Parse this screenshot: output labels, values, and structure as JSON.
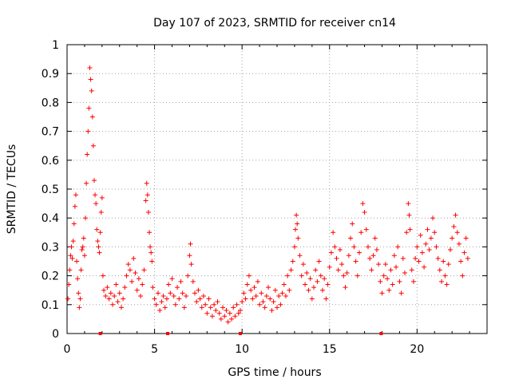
{
  "chart_data": {
    "type": "scatter",
    "title": "Day 107 of 2023, SRMTID for receiver cn14",
    "xlabel": "GPS time / hours",
    "ylabel": "SRMTID / TECUs",
    "xlim": [
      0,
      24
    ],
    "ylim": [
      0,
      1
    ],
    "xticks": [
      0,
      5,
      10,
      15,
      20
    ],
    "yticks": [
      0,
      0.1,
      0.2,
      0.3,
      0.4,
      0.5,
      0.6,
      0.7,
      0.8,
      0.9,
      1
    ],
    "ytick_labels": [
      "0",
      "0.1",
      "0.2",
      "0.3",
      "0.4",
      "0.5",
      "0.6",
      "0.7",
      "0.8",
      "0.9",
      "1"
    ],
    "grid": true,
    "marker": "+",
    "series": [
      {
        "name": "SRMTID",
        "color": "#ff0000",
        "points": [
          [
            0.05,
            0.12
          ],
          [
            0.1,
            0.17
          ],
          [
            0.15,
            0.22
          ],
          [
            0.2,
            0.27
          ],
          [
            0.25,
            0.3
          ],
          [
            0.3,
            0.26
          ],
          [
            0.35,
            0.32
          ],
          [
            0.4,
            0.38
          ],
          [
            0.45,
            0.44
          ],
          [
            0.5,
            0.48
          ],
          [
            0.55,
            0.25
          ],
          [
            0.6,
            0.19
          ],
          [
            0.65,
            0.14
          ],
          [
            0.7,
            0.09
          ],
          [
            0.75,
            0.12
          ],
          [
            0.8,
            0.22
          ],
          [
            0.85,
            0.29
          ],
          [
            0.9,
            0.3
          ],
          [
            0.95,
            0.33
          ],
          [
            1.0,
            0.27
          ],
          [
            1.05,
            0.4
          ],
          [
            1.1,
            0.52
          ],
          [
            1.15,
            0.62
          ],
          [
            1.2,
            0.7
          ],
          [
            1.25,
            0.78
          ],
          [
            1.3,
            0.92
          ],
          [
            1.35,
            0.88
          ],
          [
            1.4,
            0.84
          ],
          [
            1.45,
            0.75
          ],
          [
            1.5,
            0.65
          ],
          [
            1.55,
            0.53
          ],
          [
            1.6,
            0.48
          ],
          [
            1.65,
            0.45
          ],
          [
            1.7,
            0.36
          ],
          [
            1.75,
            0.32
          ],
          [
            1.8,
            0.3
          ],
          [
            1.85,
            0.28
          ],
          [
            1.9,
            0.35
          ],
          [
            1.95,
            0.42
          ],
          [
            2.0,
            0.47
          ],
          [
            2.05,
            0.2
          ],
          [
            2.1,
            0.15
          ],
          [
            2.2,
            0.13
          ],
          [
            2.3,
            0.16
          ],
          [
            2.4,
            0.12
          ],
          [
            2.5,
            0.14
          ],
          [
            2.6,
            0.1
          ],
          [
            2.7,
            0.13
          ],
          [
            2.8,
            0.17
          ],
          [
            2.9,
            0.11
          ],
          [
            3.0,
            0.14
          ],
          [
            3.1,
            0.09
          ],
          [
            3.2,
            0.12
          ],
          [
            3.3,
            0.16
          ],
          [
            3.4,
            0.2
          ],
          [
            3.5,
            0.24
          ],
          [
            3.6,
            0.22
          ],
          [
            3.7,
            0.18
          ],
          [
            3.8,
            0.26
          ],
          [
            3.9,
            0.21
          ],
          [
            4.0,
            0.15
          ],
          [
            4.1,
            0.19
          ],
          [
            4.2,
            0.13
          ],
          [
            4.3,
            0.17
          ],
          [
            4.4,
            0.22
          ],
          [
            4.5,
            0.46
          ],
          [
            4.55,
            0.52
          ],
          [
            4.6,
            0.48
          ],
          [
            4.65,
            0.42
          ],
          [
            4.7,
            0.35
          ],
          [
            4.75,
            0.3
          ],
          [
            4.8,
            0.28
          ],
          [
            4.85,
            0.25
          ],
          [
            4.9,
            0.16
          ],
          [
            5.0,
            0.12
          ],
          [
            5.1,
            0.1
          ],
          [
            5.2,
            0.14
          ],
          [
            5.3,
            0.08
          ],
          [
            5.4,
            0.11
          ],
          [
            5.5,
            0.13
          ],
          [
            5.6,
            0.09
          ],
          [
            5.7,
            0.12
          ],
          [
            5.8,
            0.17
          ],
          [
            5.9,
            0.14
          ],
          [
            6.0,
            0.19
          ],
          [
            6.1,
            0.13
          ],
          [
            6.2,
            0.1
          ],
          [
            6.3,
            0.16
          ],
          [
            6.4,
            0.12
          ],
          [
            6.5,
            0.18
          ],
          [
            6.6,
            0.14
          ],
          [
            6.7,
            0.09
          ],
          [
            6.8,
            0.13
          ],
          [
            6.9,
            0.2
          ],
          [
            7.0,
            0.27
          ],
          [
            7.05,
            0.31
          ],
          [
            7.1,
            0.24
          ],
          [
            7.2,
            0.18
          ],
          [
            7.3,
            0.14
          ],
          [
            7.4,
            0.11
          ],
          [
            7.5,
            0.15
          ],
          [
            7.6,
            0.12
          ],
          [
            7.7,
            0.09
          ],
          [
            7.8,
            0.13
          ],
          [
            7.9,
            0.1
          ],
          [
            8.0,
            0.07
          ],
          [
            8.1,
            0.12
          ],
          [
            8.2,
            0.09
          ],
          [
            8.3,
            0.06
          ],
          [
            8.4,
            0.1
          ],
          [
            8.5,
            0.08
          ],
          [
            8.6,
            0.11
          ],
          [
            8.7,
            0.07
          ],
          [
            8.8,
            0.05
          ],
          [
            8.9,
            0.09
          ],
          [
            9.0,
            0.06
          ],
          [
            9.1,
            0.08
          ],
          [
            9.2,
            0.04
          ],
          [
            9.3,
            0.07
          ],
          [
            9.4,
            0.05
          ],
          [
            9.5,
            0.09
          ],
          [
            9.6,
            0.06
          ],
          [
            9.7,
            0.1
          ],
          [
            9.8,
            0.07
          ],
          [
            9.9,
            0.08
          ],
          [
            10.0,
            0.11
          ],
          [
            10.1,
            0.14
          ],
          [
            10.2,
            0.12
          ],
          [
            10.3,
            0.17
          ],
          [
            10.4,
            0.2
          ],
          [
            10.5,
            0.15
          ],
          [
            10.6,
            0.12
          ],
          [
            10.7,
            0.16
          ],
          [
            10.8,
            0.13
          ],
          [
            10.9,
            0.18
          ],
          [
            11.0,
            0.1
          ],
          [
            11.1,
            0.14
          ],
          [
            11.2,
            0.11
          ],
          [
            11.3,
            0.09
          ],
          [
            11.4,
            0.13
          ],
          [
            11.5,
            0.16
          ],
          [
            11.6,
            0.12
          ],
          [
            11.7,
            0.08
          ],
          [
            11.8,
            0.11
          ],
          [
            11.9,
            0.15
          ],
          [
            12.0,
            0.09
          ],
          [
            12.1,
            0.13
          ],
          [
            12.2,
            0.1
          ],
          [
            12.3,
            0.14
          ],
          [
            12.4,
            0.17
          ],
          [
            12.5,
            0.13
          ],
          [
            12.6,
            0.2
          ],
          [
            12.7,
            0.15
          ],
          [
            12.8,
            0.22
          ],
          [
            12.9,
            0.25
          ],
          [
            13.0,
            0.3
          ],
          [
            13.05,
            0.36
          ],
          [
            13.1,
            0.41
          ],
          [
            13.15,
            0.38
          ],
          [
            13.2,
            0.33
          ],
          [
            13.3,
            0.27
          ],
          [
            13.4,
            0.2
          ],
          [
            13.5,
            0.24
          ],
          [
            13.6,
            0.17
          ],
          [
            13.7,
            0.21
          ],
          [
            13.8,
            0.15
          ],
          [
            13.9,
            0.19
          ],
          [
            14.0,
            0.12
          ],
          [
            14.1,
            0.16
          ],
          [
            14.2,
            0.22
          ],
          [
            14.3,
            0.18
          ],
          [
            14.4,
            0.25
          ],
          [
            14.5,
            0.2
          ],
          [
            14.6,
            0.15
          ],
          [
            14.7,
            0.19
          ],
          [
            14.8,
            0.12
          ],
          [
            14.9,
            0.17
          ],
          [
            15.0,
            0.23
          ],
          [
            15.1,
            0.28
          ],
          [
            15.2,
            0.35
          ],
          [
            15.3,
            0.3
          ],
          [
            15.4,
            0.26
          ],
          [
            15.5,
            0.22
          ],
          [
            15.6,
            0.29
          ],
          [
            15.7,
            0.24
          ],
          [
            15.8,
            0.2
          ],
          [
            15.9,
            0.16
          ],
          [
            16.0,
            0.21
          ],
          [
            16.1,
            0.27
          ],
          [
            16.2,
            0.33
          ],
          [
            16.3,
            0.38
          ],
          [
            16.4,
            0.3
          ],
          [
            16.5,
            0.25
          ],
          [
            16.6,
            0.2
          ],
          [
            16.7,
            0.28
          ],
          [
            16.8,
            0.35
          ],
          [
            16.9,
            0.45
          ],
          [
            17.0,
            0.42
          ],
          [
            17.1,
            0.36
          ],
          [
            17.2,
            0.3
          ],
          [
            17.3,
            0.26
          ],
          [
            17.4,
            0.22
          ],
          [
            17.5,
            0.27
          ],
          [
            17.6,
            0.33
          ],
          [
            17.7,
            0.29
          ],
          [
            17.8,
            0.24
          ],
          [
            17.9,
            0.18
          ],
          [
            18.0,
            0.14
          ],
          [
            18.1,
            0.2
          ],
          [
            18.2,
            0.24
          ],
          [
            18.3,
            0.19
          ],
          [
            18.4,
            0.15
          ],
          [
            18.5,
            0.22
          ],
          [
            18.6,
            0.17
          ],
          [
            18.7,
            0.27
          ],
          [
            18.8,
            0.23
          ],
          [
            18.9,
            0.3
          ],
          [
            19.0,
            0.18
          ],
          [
            19.1,
            0.14
          ],
          [
            19.2,
            0.26
          ],
          [
            19.3,
            0.21
          ],
          [
            19.4,
            0.35
          ],
          [
            19.5,
            0.45
          ],
          [
            19.55,
            0.41
          ],
          [
            19.6,
            0.36
          ],
          [
            19.7,
            0.22
          ],
          [
            19.8,
            0.18
          ],
          [
            19.9,
            0.26
          ],
          [
            20.0,
            0.3
          ],
          [
            20.1,
            0.25
          ],
          [
            20.2,
            0.34
          ],
          [
            20.3,
            0.28
          ],
          [
            20.4,
            0.23
          ],
          [
            20.5,
            0.31
          ],
          [
            20.6,
            0.36
          ],
          [
            20.7,
            0.29
          ],
          [
            20.8,
            0.33
          ],
          [
            20.9,
            0.4
          ],
          [
            21.0,
            0.35
          ],
          [
            21.1,
            0.3
          ],
          [
            21.2,
            0.26
          ],
          [
            21.3,
            0.22
          ],
          [
            21.4,
            0.18
          ],
          [
            21.5,
            0.25
          ],
          [
            21.6,
            0.2
          ],
          [
            21.7,
            0.17
          ],
          [
            21.8,
            0.24
          ],
          [
            21.9,
            0.29
          ],
          [
            22.0,
            0.33
          ],
          [
            22.1,
            0.37
          ],
          [
            22.2,
            0.41
          ],
          [
            22.3,
            0.35
          ],
          [
            22.4,
            0.31
          ],
          [
            22.5,
            0.25
          ],
          [
            22.6,
            0.2
          ],
          [
            22.7,
            0.28
          ],
          [
            22.8,
            0.33
          ],
          [
            22.9,
            0.26
          ]
        ]
      },
      {
        "name": "gaps",
        "color": "#ff0000",
        "points": [
          [
            1.9,
            0
          ],
          [
            5.75,
            0
          ],
          [
            9.9,
            0
          ],
          [
            17.95,
            0
          ]
        ]
      }
    ]
  }
}
